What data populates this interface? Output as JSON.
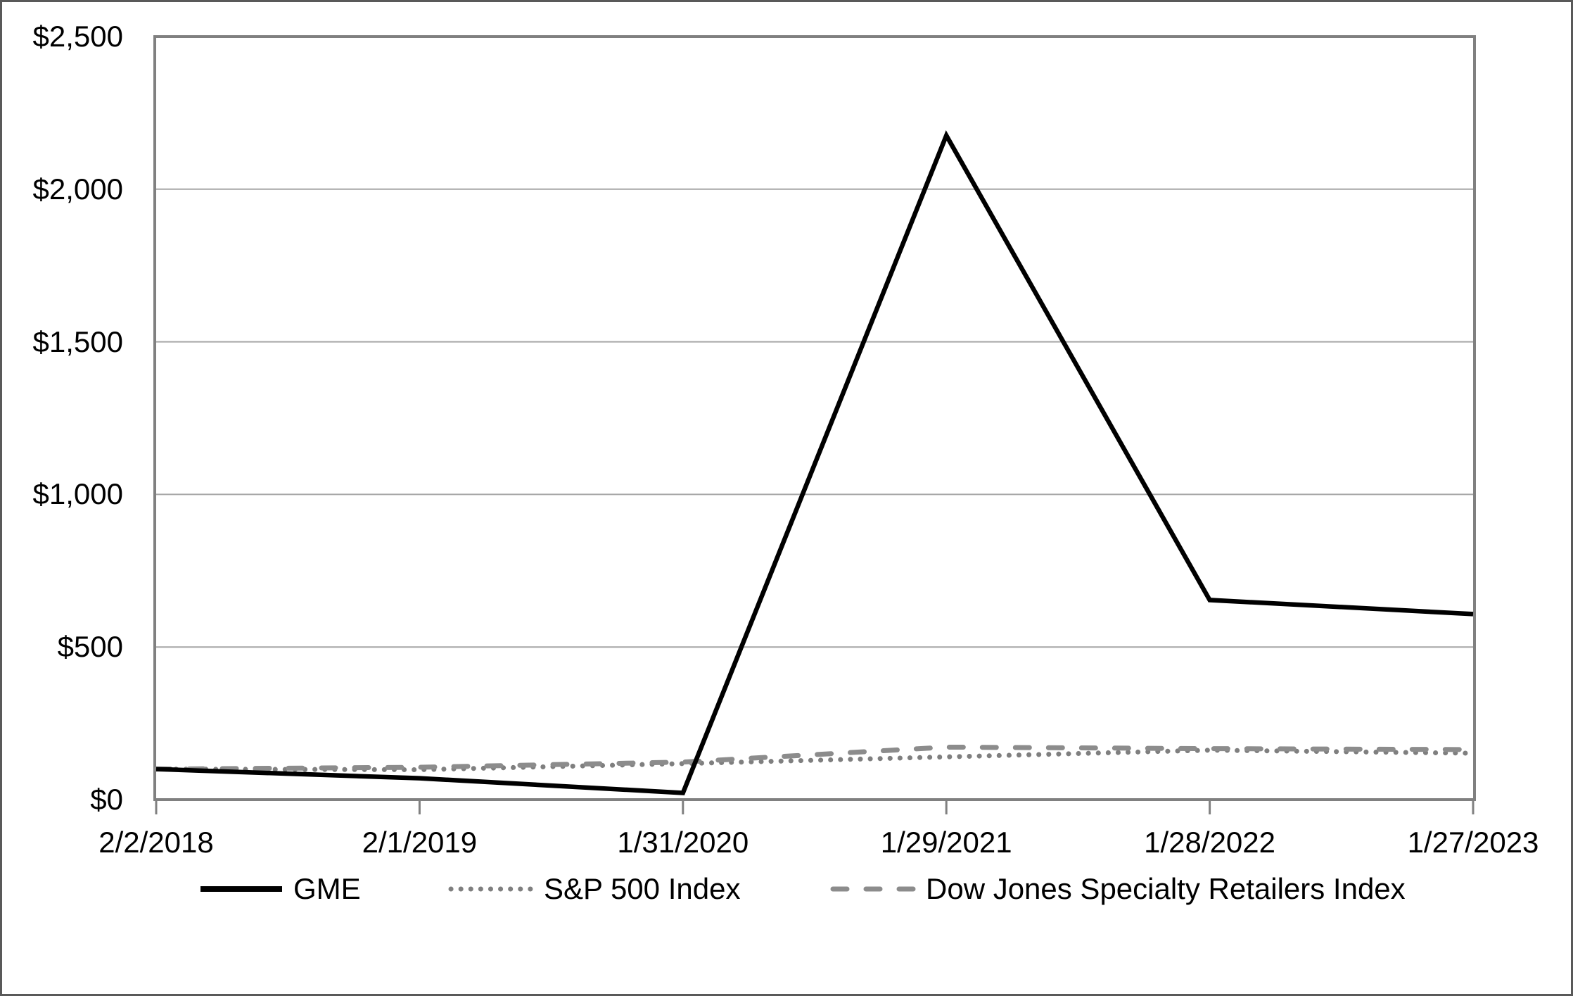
{
  "figure": {
    "background_color": "#ffffff",
    "outer_border_color": "#595959",
    "axis_color": "#808080",
    "gridline_color": "#a6a6a6",
    "tick_color": "#808080"
  },
  "chart_data": {
    "type": "line",
    "title": "",
    "xlabel": "",
    "ylabel": "",
    "categories": [
      "2/2/2018",
      "2/1/2019",
      "1/31/2020",
      "1/29/2021",
      "1/28/2022",
      "1/27/2023"
    ],
    "series": [
      {
        "name": "GME",
        "values": [
          100,
          70,
          22,
          2176,
          654,
          608
        ],
        "style": "solid",
        "color": "#000000"
      },
      {
        "name": "S&P 500 Index",
        "values": [
          100,
          98,
          118,
          140,
          162,
          152
        ],
        "style": "dotted",
        "color": "#7f7f7f"
      },
      {
        "name": "Dow Jones Specialty Retailers Index",
        "values": [
          100,
          106,
          123,
          172,
          167,
          164
        ],
        "style": "dashed",
        "color": "#8c8c8c"
      }
    ],
    "ylim": [
      0,
      2500
    ],
    "ytick_values": [
      0,
      500,
      1000,
      1500,
      2000,
      2500
    ],
    "ytick_labels": [
      "$0",
      "$500",
      "$1,000",
      "$1,500",
      "$2,000",
      "$2,500"
    ],
    "grid": true,
    "legend_position": "bottom"
  }
}
